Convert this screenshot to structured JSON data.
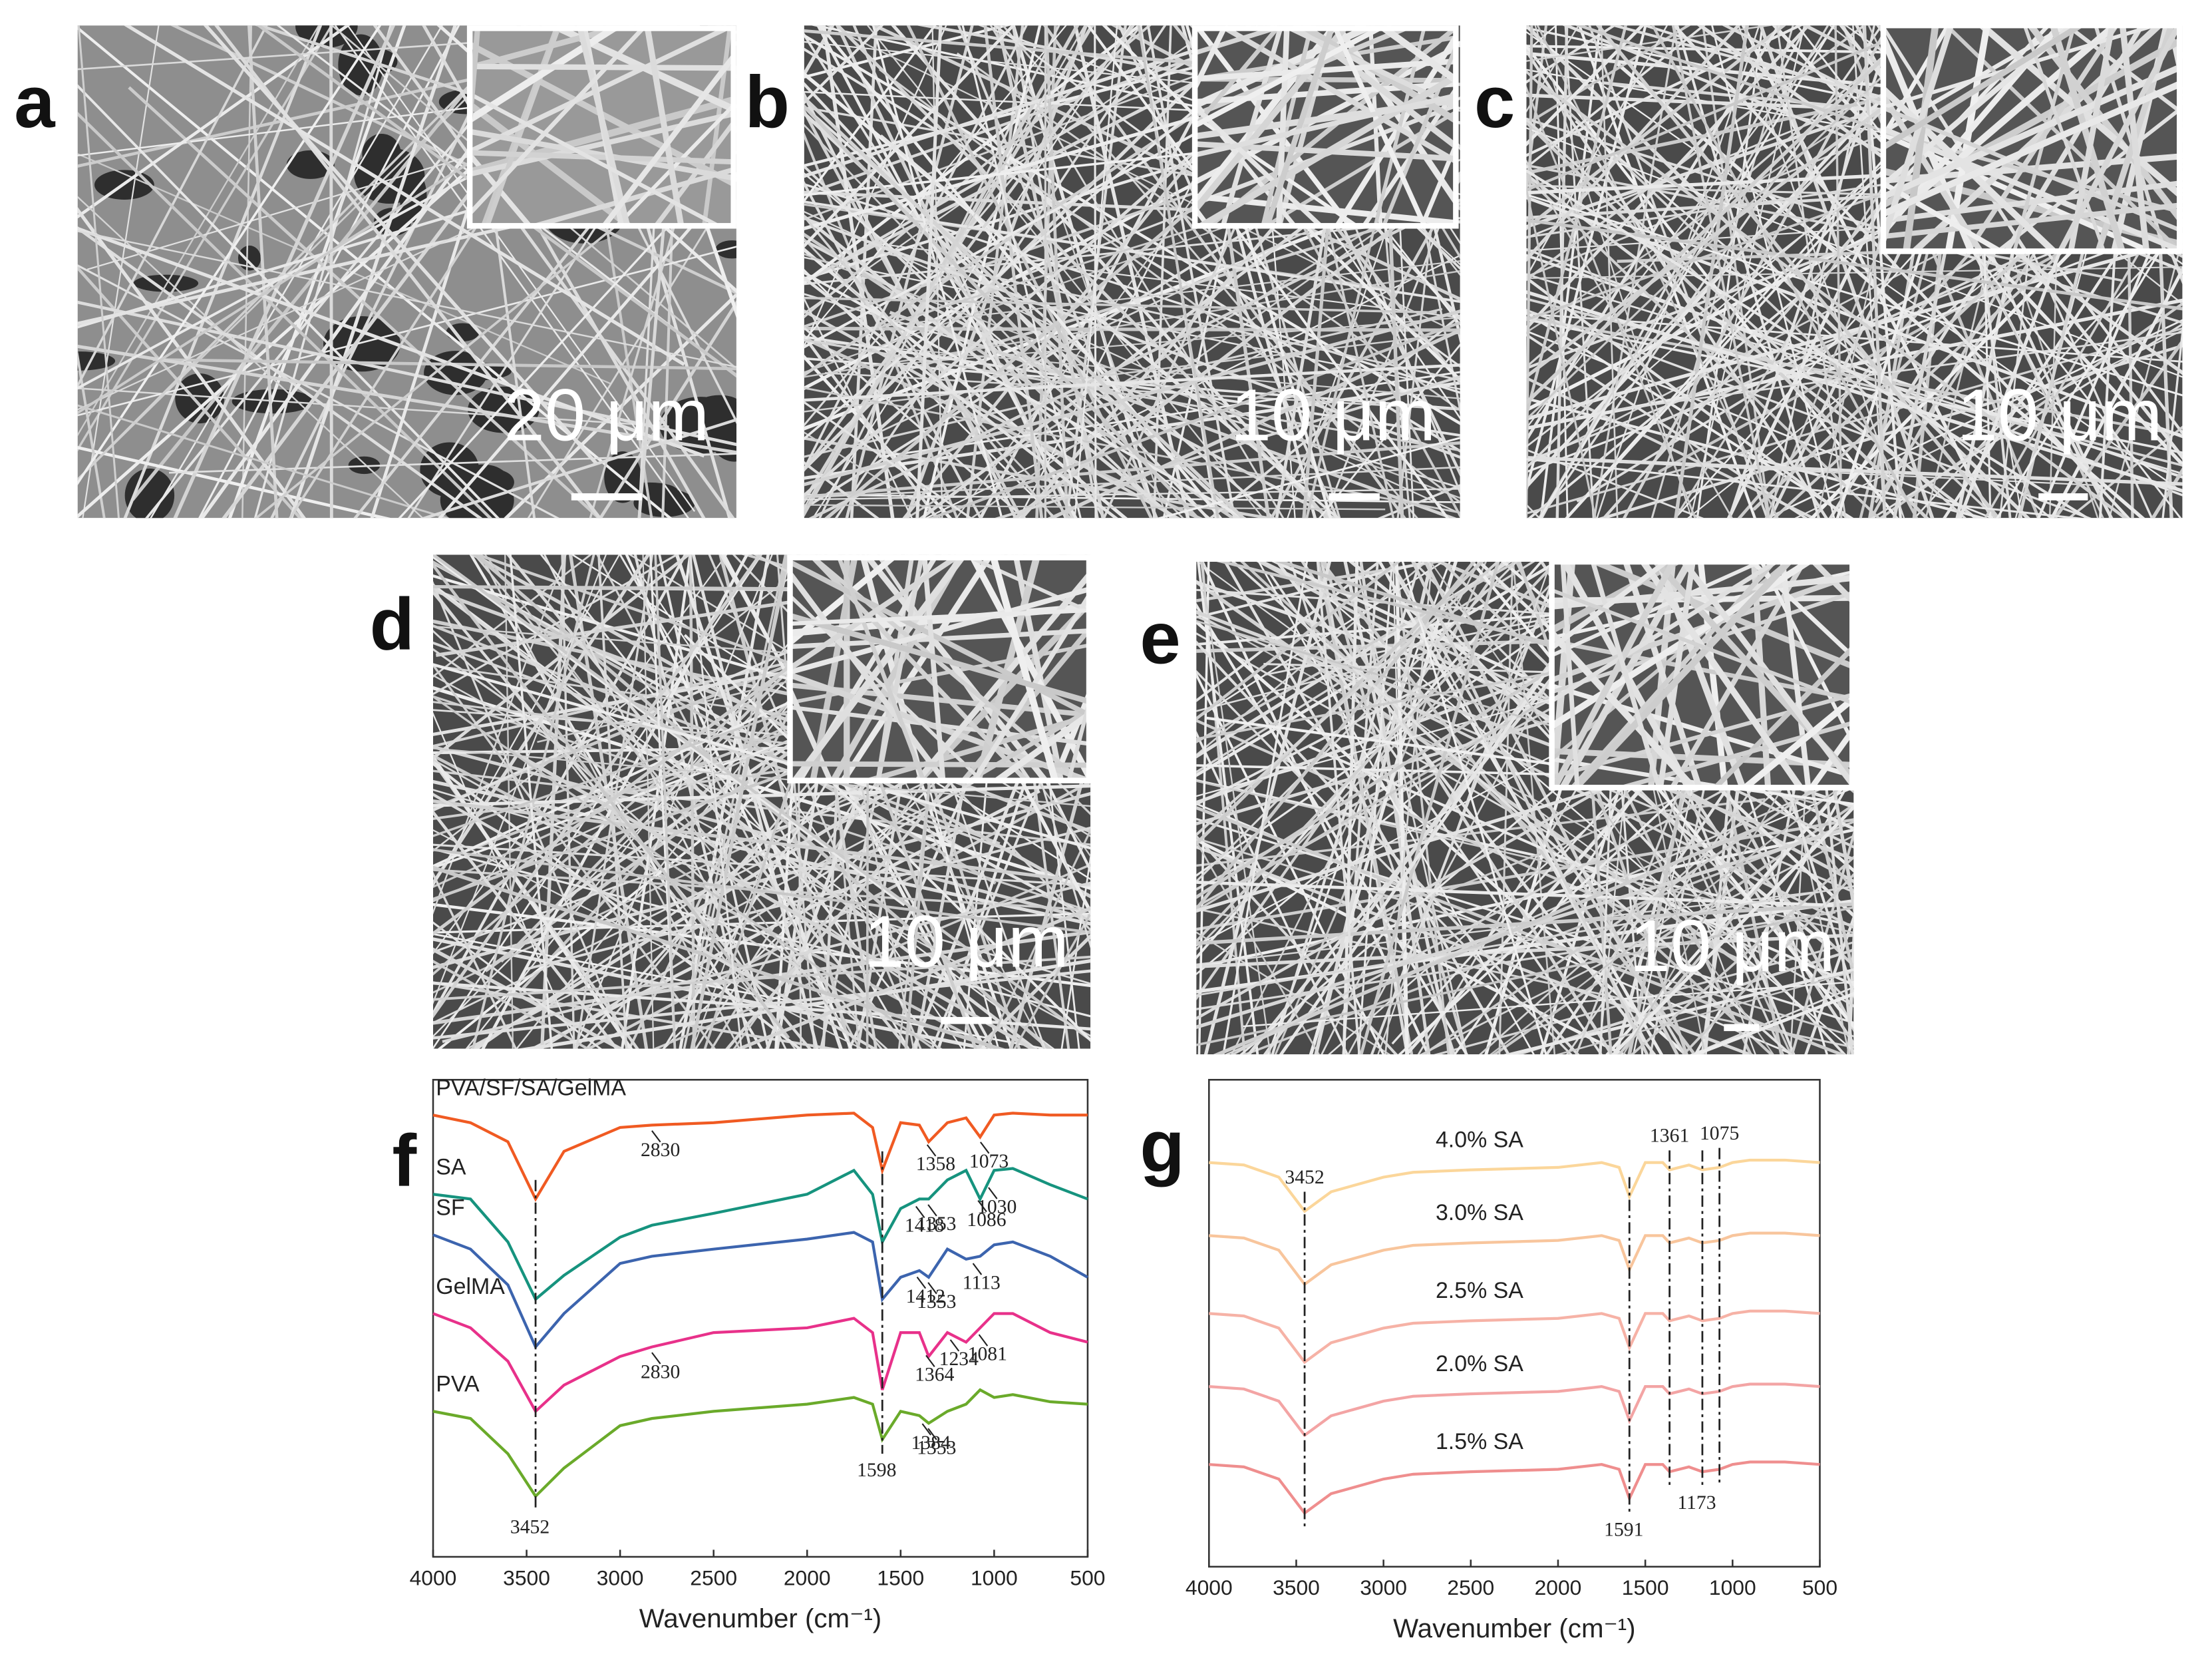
{
  "sem_panels": [
    {
      "label": "a",
      "scale": "20 μm"
    },
    {
      "label": "b",
      "scale": "10 μm"
    },
    {
      "label": "c",
      "scale": "10 μm"
    },
    {
      "label": "d",
      "scale": "10 μm"
    },
    {
      "label": "e",
      "scale": "10 μm"
    }
  ],
  "chart_data": [
    {
      "type": "line",
      "panel": "f",
      "xlabel": "Wavenumber (cm⁻¹)",
      "xlim": [
        4000,
        500
      ],
      "xticks": [
        4000,
        3500,
        3000,
        2500,
        2000,
        1500,
        1000,
        500
      ],
      "ylim": [
        0,
        100
      ],
      "x": [
        4000,
        3800,
        3600,
        3452,
        3300,
        3000,
        2830,
        2500,
        2000,
        1750,
        1650,
        1598,
        1500,
        1400,
        1350,
        1250,
        1150,
        1075,
        1000,
        900,
        700,
        500
      ],
      "series": [
        {
          "name": "PVA/SF/SA/GelMA",
          "color": "#f05a22",
          "values": [
            92.6,
            91,
            87,
            75,
            85,
            90,
            90.5,
            91,
            92.6,
            93,
            90,
            81,
            91,
            90.5,
            87,
            91,
            92,
            88,
            92.6,
            93,
            92.6,
            92.6
          ]
        },
        {
          "name": "SA",
          "color": "#16937e",
          "values": [
            76,
            75,
            66,
            54,
            59,
            67,
            69.5,
            72,
            76,
            81,
            76,
            66,
            73,
            75,
            75,
            79,
            81,
            75,
            81,
            81.4,
            78,
            75
          ]
        },
        {
          "name": "SF",
          "color": "#3c64ae",
          "values": [
            67.5,
            64.5,
            57,
            44,
            51,
            61.5,
            63,
            64.5,
            66.6,
            68,
            66,
            54,
            58.6,
            60,
            58.6,
            64.5,
            62.4,
            63,
            65.4,
            66,
            63,
            58.6
          ]
        },
        {
          "name": "GelMA",
          "color": "#e8318a",
          "values": [
            51,
            48,
            41,
            30.5,
            36,
            42,
            44,
            47,
            48,
            50,
            47,
            35,
            47,
            47,
            42,
            47,
            45,
            48,
            51,
            51,
            47,
            45
          ]
        },
        {
          "name": "PVA",
          "color": "#6aaa2a",
          "values": [
            30.5,
            29,
            21.6,
            12.7,
            18.6,
            27.5,
            29,
            30.5,
            32,
            33.4,
            32,
            24.6,
            30.5,
            29.6,
            28,
            30.5,
            32,
            35,
            33.4,
            34,
            32.5,
            32
          ]
        }
      ],
      "vlines": [
        {
          "value": 3452,
          "label_at": "bottom"
        },
        {
          "value": 1598,
          "label_at": "bottom"
        }
      ],
      "peak_labels": [
        {
          "value": 2830,
          "series": 0
        },
        {
          "value": 1358,
          "series": 0
        },
        {
          "value": 1073,
          "series": 0
        },
        {
          "value": 1353,
          "series": 1
        },
        {
          "value": 1086,
          "series": 1
        },
        {
          "value": 1030,
          "series": 1
        },
        {
          "value": 1418,
          "series": 1
        },
        {
          "value": 1412,
          "series": 2
        },
        {
          "value": 1353,
          "series": 2
        },
        {
          "value": 1113,
          "series": 2
        },
        {
          "value": 2830,
          "series": 3
        },
        {
          "value": 1364,
          "series": 3
        },
        {
          "value": 1234,
          "series": 3
        },
        {
          "value": 1081,
          "series": 3
        },
        {
          "value": 1384,
          "series": 4
        },
        {
          "value": 1353,
          "series": 4
        }
      ]
    },
    {
      "type": "line",
      "panel": "g",
      "xlabel": "Wavenumber (cm⁻¹)",
      "xlim": [
        4000,
        500
      ],
      "xticks": [
        4000,
        3500,
        3000,
        2500,
        2000,
        1500,
        1000,
        500
      ],
      "ylim": [
        0,
        100
      ],
      "x": [
        4000,
        3800,
        3600,
        3452,
        3300,
        3000,
        2830,
        2500,
        2000,
        1750,
        1650,
        1591,
        1500,
        1400,
        1361,
        1250,
        1173,
        1075,
        1000,
        900,
        700,
        500
      ],
      "series": [
        {
          "name": "4.0% SA",
          "color": "#fbd69a",
          "values": [
            83,
            82.5,
            80,
            73,
            77,
            80,
            81,
            81.5,
            82,
            83,
            82,
            76,
            83,
            83,
            81.5,
            82.5,
            81.5,
            82,
            83,
            83.5,
            83.5,
            83
          ]
        },
        {
          "name": "3.0% SA",
          "color": "#f8c59c",
          "values": [
            68,
            67.5,
            65,
            58,
            62,
            65,
            66,
            66.5,
            67,
            68,
            67,
            61,
            68,
            68,
            66.5,
            67.5,
            66.5,
            67,
            68,
            68.5,
            68.5,
            68
          ]
        },
        {
          "name": "2.5% SA",
          "color": "#f6b2a6",
          "values": [
            52,
            51.5,
            49,
            42,
            46,
            49,
            50,
            50.5,
            51,
            52,
            51,
            45,
            52,
            52,
            50.5,
            51.5,
            50.5,
            51,
            52,
            52.5,
            52.5,
            52
          ]
        },
        {
          "name": "2.0% SA",
          "color": "#f3a4a4",
          "values": [
            37,
            36.5,
            34,
            27,
            31,
            34,
            35,
            35.5,
            36,
            37,
            36,
            30,
            37,
            37,
            35.5,
            36.5,
            35.5,
            36,
            37,
            37.5,
            37.5,
            37
          ]
        },
        {
          "name": "1.5% SA",
          "color": "#ef8e8e",
          "values": [
            21,
            20.5,
            18,
            11,
            15,
            18,
            19,
            19.5,
            20,
            21,
            20,
            14,
            21,
            21,
            19.5,
            20.5,
            19.5,
            20,
            21,
            21.5,
            21.5,
            21
          ]
        }
      ],
      "vlines": [
        {
          "value": 3452,
          "label_at": "top"
        },
        {
          "value": 1591,
          "label_at": "bottom"
        },
        {
          "value": 1361,
          "label_at": "top"
        },
        {
          "value": 1173,
          "label_at": "bottom"
        },
        {
          "value": 1075,
          "label_at": "top"
        }
      ]
    }
  ]
}
